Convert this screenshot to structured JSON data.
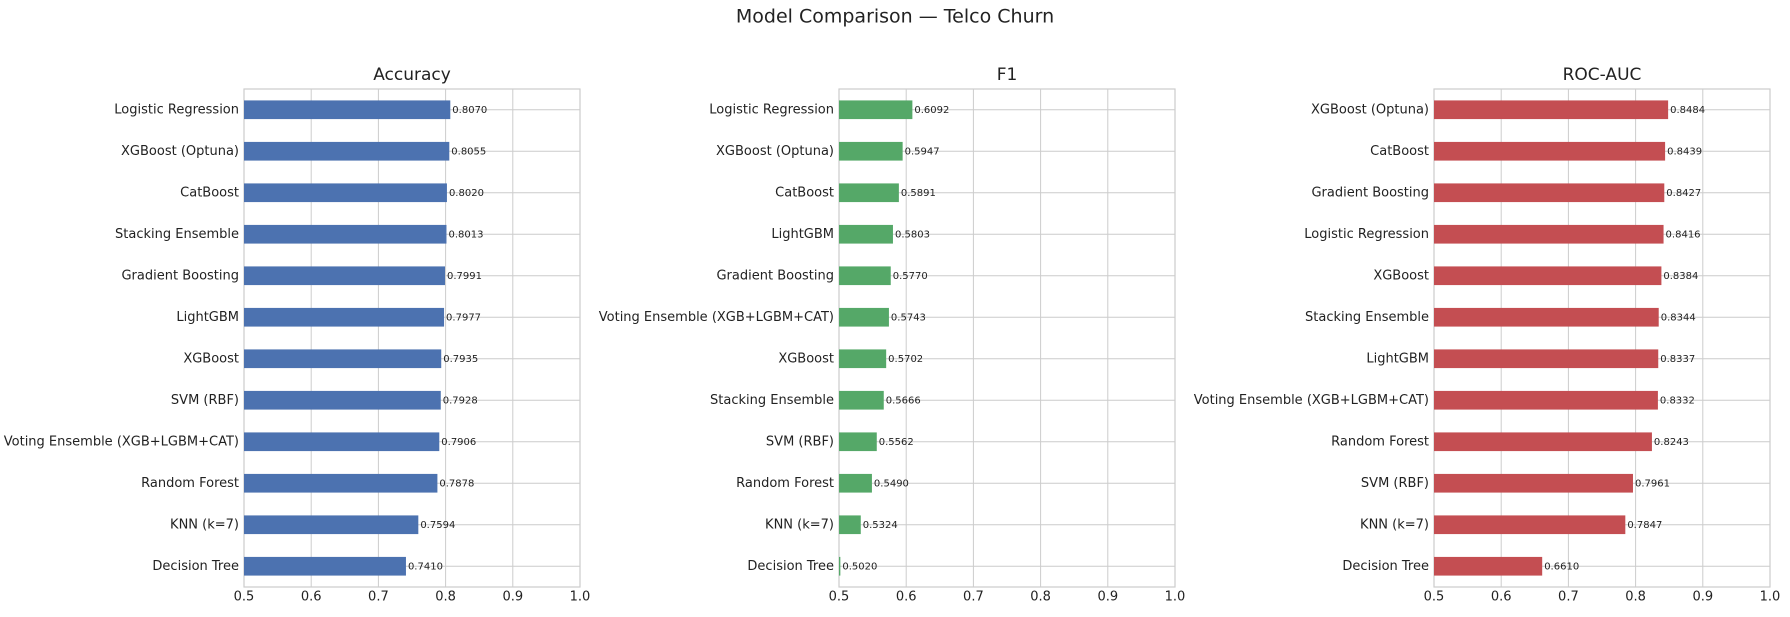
{
  "title": "Model Comparison — Telco Churn",
  "chart_data": [
    {
      "type": "barh",
      "title": "Accuracy",
      "color": "#4c72b0",
      "grid": true,
      "categories": [
        "Logistic Regression",
        "XGBoost (Optuna)",
        "CatBoost",
        "Stacking Ensemble",
        "Gradient Boosting",
        "LightGBM",
        "XGBoost",
        "SVM (RBF)",
        "Voting Ensemble (XGB+LGBM+CAT)",
        "Random Forest",
        "KNN (k=7)",
        "Decision Tree"
      ],
      "values": [
        0.807,
        0.8055,
        0.802,
        0.8013,
        0.7991,
        0.7977,
        0.7935,
        0.7928,
        0.7906,
        0.7878,
        0.7594,
        0.741
      ],
      "value_labels": [
        "0.8070",
        "0.8055",
        "0.8020",
        "0.8013",
        "0.7991",
        "0.7977",
        "0.7935",
        "0.7928",
        "0.7906",
        "0.7878",
        "0.7594",
        "0.7410"
      ],
      "xlim": [
        0.5,
        1
      ],
      "xticks": [
        0.5,
        0.6,
        0.7,
        0.8,
        0.9,
        {
          "value": 1,
          "label": "1.0"
        }
      ]
    },
    {
      "type": "barh",
      "title": "F1",
      "color": "#55a868",
      "grid": true,
      "categories": [
        "Logistic Regression",
        "XGBoost (Optuna)",
        "CatBoost",
        "LightGBM",
        "Gradient Boosting",
        "Voting Ensemble (XGB+LGBM+CAT)",
        "XGBoost",
        "Stacking Ensemble",
        "SVM (RBF)",
        "Random Forest",
        "KNN (k=7)",
        "Decision Tree"
      ],
      "values": [
        0.6092,
        0.5947,
        0.5891,
        0.5803,
        0.577,
        0.5743,
        0.5702,
        0.5666,
        0.5562,
        0.549,
        0.5324,
        0.502
      ],
      "value_labels": [
        "0.6092",
        "0.5947",
        "0.5891",
        "0.5803",
        "0.5770",
        "0.5743",
        "0.5702",
        "0.5666",
        "0.5562",
        "0.5490",
        "0.5324",
        "0.5020"
      ],
      "xlim": [
        0.5,
        1
      ],
      "xticks": [
        0.5,
        0.6,
        0.7,
        0.8,
        0.9,
        {
          "value": 1,
          "label": "1.0"
        }
      ]
    },
    {
      "type": "barh",
      "title": "ROC-AUC",
      "color": "#c44e52",
      "grid": true,
      "categories": [
        "XGBoost (Optuna)",
        "CatBoost",
        "Gradient Boosting",
        "Logistic Regression",
        "XGBoost",
        "Stacking Ensemble",
        "LightGBM",
        "Voting Ensemble (XGB+LGBM+CAT)",
        "Random Forest",
        "SVM (RBF)",
        "KNN (k=7)",
        "Decision Tree"
      ],
      "values": [
        0.8484,
        0.8439,
        0.8427,
        0.8416,
        0.8384,
        0.8344,
        0.8337,
        0.8332,
        0.8243,
        0.7961,
        0.7847,
        0.661
      ],
      "value_labels": [
        "0.8484",
        "0.8439",
        "0.8427",
        "0.8416",
        "0.8384",
        "0.8344",
        "0.8337",
        "0.8332",
        "0.8243",
        "0.7961",
        "0.7847",
        "0.6610"
      ],
      "xlim": [
        0.5,
        1
      ],
      "xticks": [
        0.5,
        0.6,
        0.7,
        0.8,
        0.9,
        {
          "value": 1,
          "label": "1.0"
        }
      ]
    }
  ]
}
